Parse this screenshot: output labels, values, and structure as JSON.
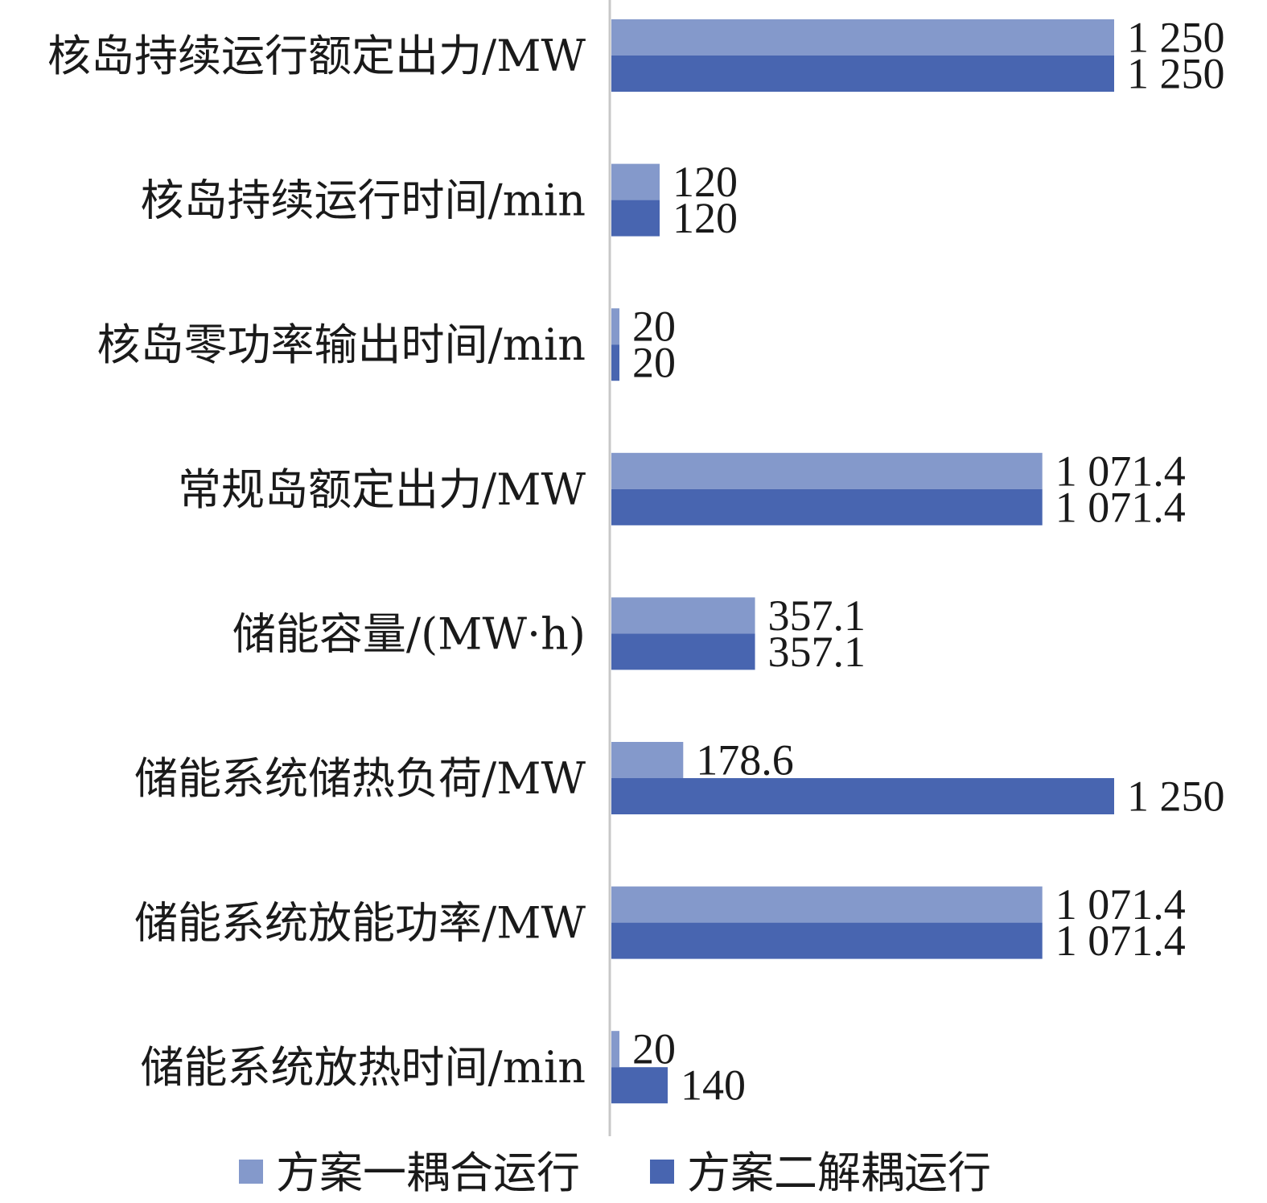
{
  "chart_data": {
    "type": "bar",
    "orientation": "horizontal",
    "categories": [
      "核岛持续运行额定出力/MW",
      "核岛持续运行时间/min",
      "核岛零功率输出时间/min",
      "常规岛额定出力/MW",
      "储能容量/(MW·h)",
      "储能系统储热负荷/MW",
      "储能系统放能功率/MW",
      "储能系统放热时间/min"
    ],
    "series": [
      {
        "name": "方案一耦合运行",
        "color": "#8499cb",
        "values": [
          1250,
          120,
          20,
          1071.4,
          357.1,
          178.6,
          1071.4,
          20
        ],
        "labels": [
          "1 250",
          "120",
          "20",
          "1 071.4",
          "357.1",
          "178.6",
          "1 071.4",
          "20"
        ]
      },
      {
        "name": "方案二解耦运行",
        "color": "#4865b0",
        "values": [
          1250,
          120,
          20,
          1071.4,
          357.1,
          1250,
          1071.4,
          140
        ],
        "labels": [
          "1 250",
          "120",
          "20",
          "1 071.4",
          "357.1",
          "1 250",
          "1 071.4",
          "140"
        ]
      }
    ],
    "xlim": [
      0,
      1250
    ],
    "grid": false,
    "legend_position": "bottom"
  }
}
